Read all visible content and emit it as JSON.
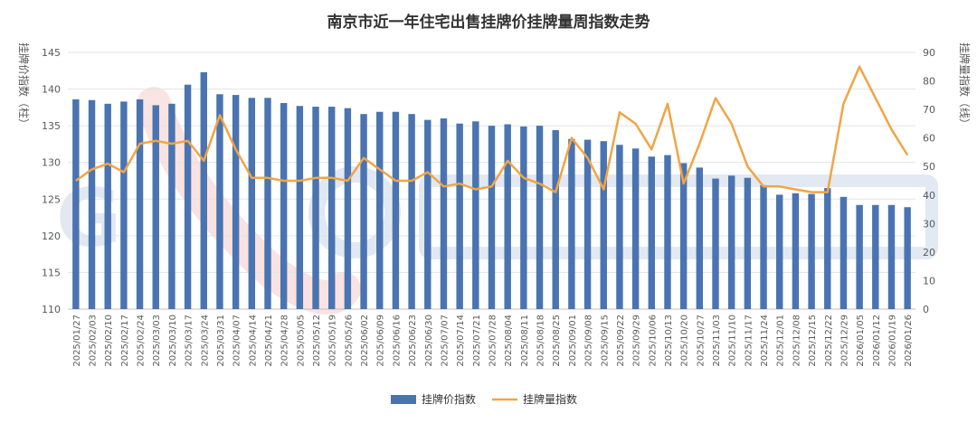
{
  "chart_data": {
    "type": "bar",
    "title": "南京市近一年住宅出售挂牌价挂牌量周指数走势",
    "y_left_label": "挂牌价指数（柱）",
    "y_right_label": "挂牌量指数（线）",
    "ylim_left": [
      110,
      145
    ],
    "yticks_left": [
      110,
      115,
      120,
      125,
      130,
      135,
      140,
      145
    ],
    "ylim_right": [
      0,
      90
    ],
    "yticks_right": [
      0,
      10,
      20,
      30,
      40,
      50,
      60,
      70,
      80,
      90
    ],
    "grid": true,
    "legend_position": "bottom",
    "x_tick_labels": [
      "2025/01/27",
      "2025/02/03",
      "2025/02/10",
      "2025/02/17",
      "2025/02/24",
      "2025/03/03",
      "2025/03/10",
      "2025/03/17",
      "2025/03/24",
      "2025/03/31",
      "2025/04/07",
      "2025/04/14",
      "2025/04/21",
      "2025/04/28",
      "2025/05/05",
      "2025/05/12",
      "2025/05/19",
      "2025/05/26",
      "2025/06/02",
      "2025/06/09",
      "2025/06/16",
      "2025/06/23",
      "2025/06/30",
      "2025/07/07",
      "2025/07/14",
      "2025/07/21",
      "2025/07/28",
      "2025/08/04",
      "2025/08/11",
      "2025/08/18",
      "2025/08/25",
      "2025/09/01",
      "2025/09/08",
      "2025/09/15",
      "2025/09/22",
      "2025/09/29",
      "2025/10/06",
      "2025/10/13",
      "2025/10/20",
      "2025/10/27",
      "2025/11/03",
      "2025/11/10",
      "2025/11/17",
      "2025/11/24",
      "2025/12/01",
      "2025/12/08",
      "2025/12/15",
      "2025/12/22",
      "2025/12/29",
      "2026/01/05",
      "2026/01/12",
      "2026/01/19",
      "2026/01/26"
    ],
    "series": [
      {
        "name": "挂牌价指数",
        "type": "bar",
        "axis": "left",
        "color": "#4a74b0",
        "values": [
          138.6,
          138.5,
          138.0,
          138.3,
          138.6,
          137.8,
          138.0,
          140.6,
          142.3,
          139.3,
          139.2,
          138.8,
          138.8,
          138.1,
          137.7,
          137.6,
          137.6,
          137.4,
          136.6,
          136.9,
          136.9,
          136.6,
          135.8,
          136.0,
          135.3,
          135.6,
          135.0,
          135.2,
          134.9,
          135.0,
          134.4,
          133.2,
          133.1,
          132.9,
          132.4,
          131.9,
          130.8,
          131.0,
          129.9,
          129.3,
          127.8,
          128.2,
          127.9,
          126.9,
          125.6,
          125.8,
          125.7,
          126.5,
          125.3,
          124.2,
          124.2,
          124.2,
          123.9
        ]
      },
      {
        "name": "挂牌量指数",
        "type": "line",
        "axis": "right",
        "color": "#f0a546",
        "values": [
          45,
          49,
          51,
          48,
          58,
          59,
          58,
          59,
          52,
          68,
          56,
          46,
          46,
          45,
          45,
          46,
          46,
          45,
          53,
          49,
          45,
          45,
          48,
          43,
          44,
          42,
          43,
          52,
          46,
          44,
          41,
          60,
          53,
          42,
          69,
          65,
          56,
          72,
          44,
          58,
          74,
          65,
          50,
          43,
          43,
          42,
          41,
          41,
          72,
          85,
          74,
          63,
          54
        ]
      }
    ]
  }
}
